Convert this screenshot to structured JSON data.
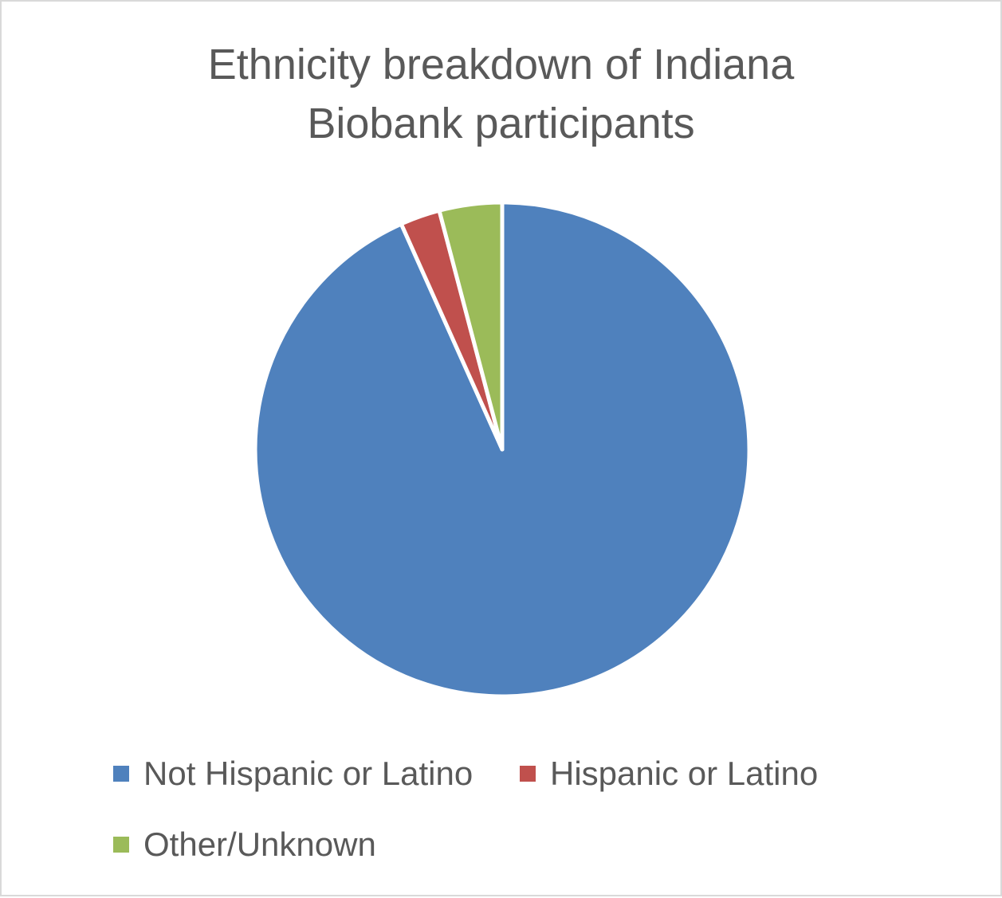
{
  "chart_data": {
    "type": "pie",
    "title_lines": [
      "Ethnicity breakdown of Indiana",
      "Biobank participants"
    ],
    "slices": [
      {
        "label": "Not Hispanic or Latino",
        "value": 93.3,
        "color": "#4f81bd"
      },
      {
        "label": "Hispanic or Latino",
        "value": 2.6,
        "color": "#c0504d"
      },
      {
        "label": "Other/Unknown",
        "value": 4.1,
        "color": "#9bbb59"
      }
    ],
    "start_angle_deg": 0,
    "direction": "clockwise",
    "legend_position": "bottom"
  }
}
